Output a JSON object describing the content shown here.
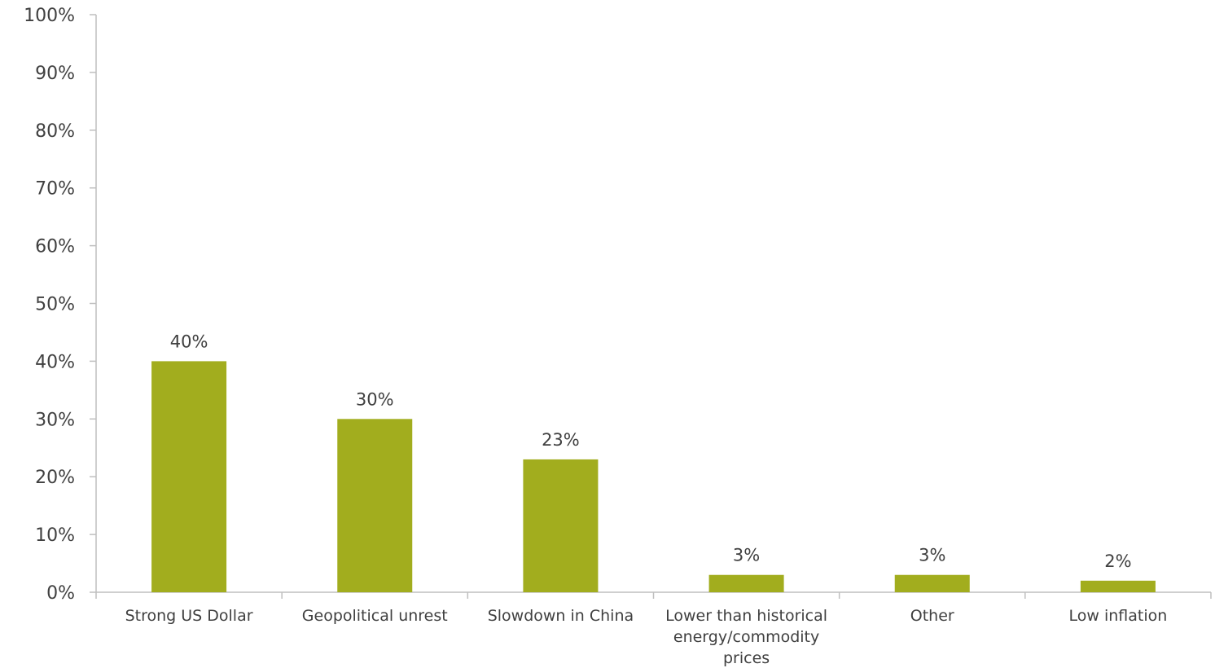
{
  "chart_data": {
    "type": "bar",
    "categories": [
      [
        "Strong US Dollar"
      ],
      [
        "Geopolitical unrest"
      ],
      [
        "Slowdown in China"
      ],
      [
        "Lower than historical",
        "energy/commodity",
        "prices"
      ],
      [
        "Other"
      ],
      [
        "Low inflation"
      ]
    ],
    "values": [
      40,
      30,
      23,
      3,
      3,
      2
    ],
    "data_labels": [
      "40%",
      "30%",
      "23%",
      "3%",
      "3%",
      "2%"
    ],
    "yticks": [
      "0%",
      "10%",
      "20%",
      "30%",
      "40%",
      "50%",
      "60%",
      "70%",
      "80%",
      "90%",
      "100%"
    ],
    "ylim": [
      0,
      100
    ],
    "grid": false,
    "bar_color": "#a2ad1e"
  }
}
